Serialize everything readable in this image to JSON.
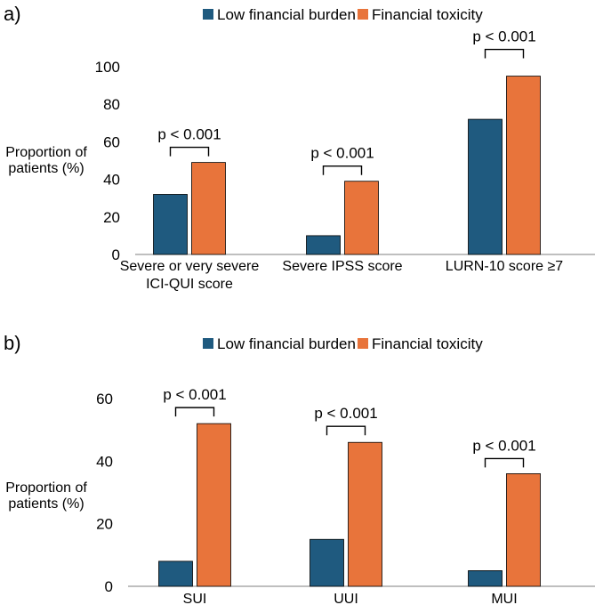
{
  "colors": {
    "low": "#1f5a7f",
    "fin": "#e8743b"
  },
  "chart_data": [
    {
      "type": "bar",
      "panel_label": "a)",
      "legend": [
        "Low financial burden",
        "Financial toxicity"
      ],
      "ylabel": [
        "Proportion of",
        "patients (%)"
      ],
      "ylim": [
        0,
        100
      ],
      "yticks": [
        0,
        20,
        40,
        60,
        80,
        100
      ],
      "categories": [
        [
          "Severe or very severe",
          "ICI-QUI score"
        ],
        [
          "Severe IPSS score"
        ],
        [
          "LURN-10 score ≥7"
        ]
      ],
      "series": [
        {
          "name": "Low financial burden",
          "values": [
            32,
            10,
            72
          ]
        },
        {
          "name": "Financial toxicity",
          "values": [
            49,
            39,
            95
          ]
        }
      ],
      "annotations": [
        "p < 0.001",
        "p < 0.001",
        "p < 0.001"
      ]
    },
    {
      "type": "bar",
      "panel_label": "b)",
      "legend": [
        "Low financial burden",
        "Financial toxicity"
      ],
      "ylabel": [
        "Proportion of",
        "patients (%)"
      ],
      "ylim": [
        0,
        60
      ],
      "yticks": [
        0,
        20,
        40,
        60
      ],
      "categories": [
        [
          "SUI"
        ],
        [
          "UUI"
        ],
        [
          "MUI"
        ]
      ],
      "series": [
        {
          "name": "Low financial burden",
          "values": [
            8,
            15,
            5
          ]
        },
        {
          "name": "Financial toxicity",
          "values": [
            52,
            46,
            36
          ]
        }
      ],
      "annotations": [
        "p < 0.001",
        "p < 0.001",
        "p < 0.001"
      ]
    }
  ]
}
